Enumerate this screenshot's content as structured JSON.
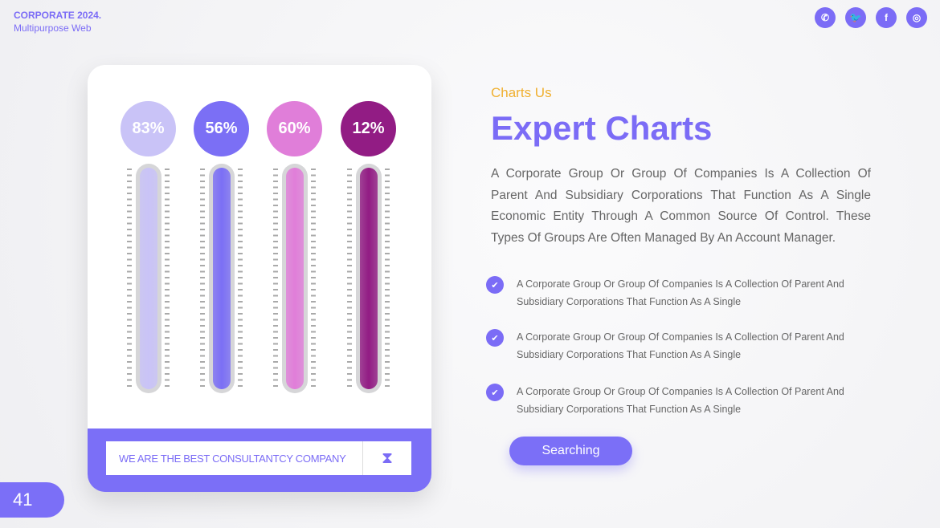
{
  "brand": {
    "title": "CORPORATE 2024.",
    "subtitle": "Multipurpose Web"
  },
  "social": [
    {
      "icon": "whatsapp-icon",
      "glyph": "✆"
    },
    {
      "icon": "twitter-icon",
      "glyph": "🐦"
    },
    {
      "icon": "facebook-icon",
      "glyph": "f"
    },
    {
      "icon": "instagram-icon",
      "glyph": "◎"
    }
  ],
  "gauges": [
    {
      "label": "83%",
      "value": 83,
      "color": "#c9c3f7"
    },
    {
      "label": "56%",
      "value": 56,
      "color": "#7b6ff5"
    },
    {
      "label": "60%",
      "value": 60,
      "color": "#e07ed9"
    },
    {
      "label": "12%",
      "value": 12,
      "color": "#921c84"
    }
  ],
  "card_footer": {
    "text": "WE ARE THE BEST CONSULTANTCY COMPANY",
    "icon": "hourglass-icon"
  },
  "page_number": "41",
  "section": {
    "subtitle": "Charts Us",
    "title": "Expert Charts",
    "description": "A Corporate Group Or Group Of Companies Is A Collection Of Parent And Subsidiary Corporations  That Function As A Single Economic Entity Through A Common Source Of Control. These Types Of Groups Are Often Managed By An Account Manager."
  },
  "list": [
    "A Corporate Group Or Group Of Companies Is A Collection Of Parent And Subsidiary Corporations  That Function As A Single",
    "A Corporate Group Or Group Of Companies Is A Collection Of Parent And Subsidiary Corporations  That Function As A Single",
    "A Corporate Group Or Group Of Companies Is A Collection Of Parent And Subsidiary Corporations  That Function As A Single"
  ],
  "button": "Searching",
  "colors": {
    "accent": "#7b6cf6",
    "highlight": "#f0b030"
  }
}
